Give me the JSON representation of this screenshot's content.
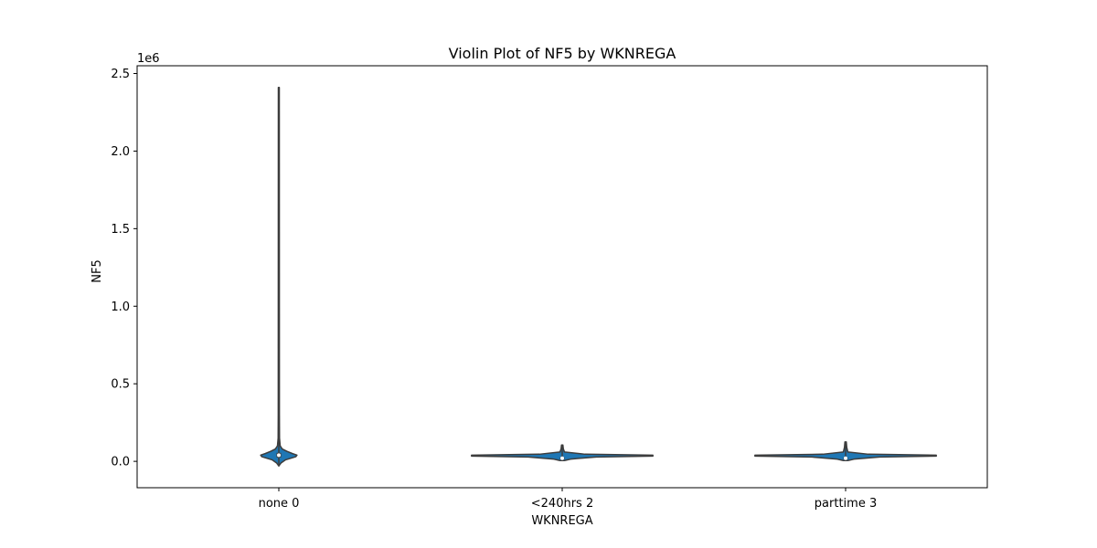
{
  "chart_data": {
    "type": "violin",
    "title": "Violin Plot of NF5 by WKNREGA",
    "xlabel": "WKNREGA",
    "ylabel": "NF5",
    "y_offset_text": "1e6",
    "categories": [
      "none 0",
      "<240hrs 2",
      "parttime 3"
    ],
    "yticks": [
      0.0,
      0.5,
      1.0,
      1.5,
      2.0,
      2.5
    ],
    "ytick_labels": [
      "0.0",
      "0.5",
      "1.0",
      "1.5",
      "2.0",
      "2.5"
    ],
    "ylim": [
      -0.17,
      2.55
    ],
    "y_unit_scale": 1000000,
    "grid": false,
    "colors": {
      "fill": "#1f77b4",
      "edge": "#3d3d3d",
      "inner": "#3d3d3d"
    },
    "series": [
      {
        "category": "none 0",
        "min": -0.03,
        "max": 2.41,
        "q1": 0.025,
        "median": 0.04,
        "q3": 0.055,
        "profile": [
          {
            "y": -0.03,
            "w": 0.0
          },
          {
            "y": -0.01,
            "w": 0.02
          },
          {
            "y": 0.01,
            "w": 0.06
          },
          {
            "y": 0.03,
            "w": 0.15
          },
          {
            "y": 0.04,
            "w": 0.16
          },
          {
            "y": 0.05,
            "w": 0.12
          },
          {
            "y": 0.065,
            "w": 0.07
          },
          {
            "y": 0.08,
            "w": 0.03
          },
          {
            "y": 0.1,
            "w": 0.012
          },
          {
            "y": 0.15,
            "w": 0.006
          },
          {
            "y": 0.3,
            "w": 0.005
          },
          {
            "y": 2.41,
            "w": 0.004
          }
        ]
      },
      {
        "category": "<240hrs 2",
        "min": 0.005,
        "max": 0.105,
        "q1": 0.015,
        "median": 0.02,
        "q3": 0.025,
        "profile": [
          {
            "y": 0.005,
            "w": 0.02
          },
          {
            "y": 0.015,
            "w": 0.08
          },
          {
            "y": 0.028,
            "w": 0.3
          },
          {
            "y": 0.034,
            "w": 0.8
          },
          {
            "y": 0.04,
            "w": 0.8
          },
          {
            "y": 0.046,
            "w": 0.2
          },
          {
            "y": 0.06,
            "w": 0.02
          },
          {
            "y": 0.08,
            "w": 0.01
          },
          {
            "y": 0.105,
            "w": 0.006
          }
        ]
      },
      {
        "category": "parttime 3",
        "min": 0.005,
        "max": 0.125,
        "q1": 0.015,
        "median": 0.02,
        "q3": 0.025,
        "profile": [
          {
            "y": 0.005,
            "w": 0.02
          },
          {
            "y": 0.015,
            "w": 0.08
          },
          {
            "y": 0.028,
            "w": 0.3
          },
          {
            "y": 0.034,
            "w": 0.8
          },
          {
            "y": 0.04,
            "w": 0.8
          },
          {
            "y": 0.046,
            "w": 0.2
          },
          {
            "y": 0.06,
            "w": 0.02
          },
          {
            "y": 0.09,
            "w": 0.01
          },
          {
            "y": 0.125,
            "w": 0.006
          }
        ]
      }
    ]
  }
}
